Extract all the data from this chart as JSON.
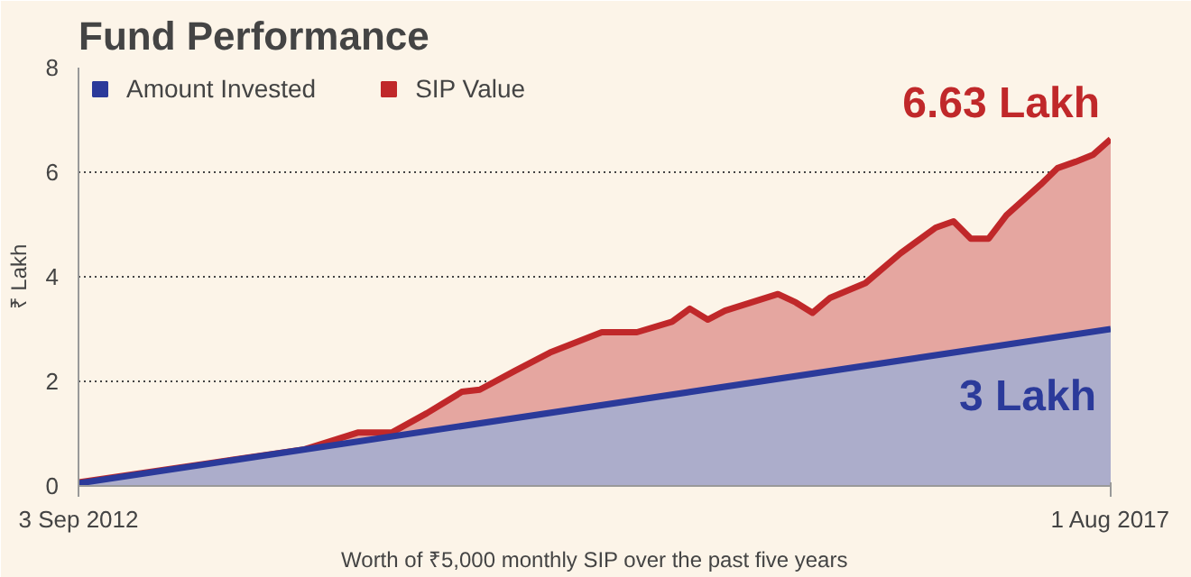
{
  "chart_data": {
    "type": "area",
    "title": "Fund Performance",
    "xlabel": "Worth of ₹5,000 monthly SIP over the past five years",
    "ylabel": "₹ Lakh",
    "series": [
      {
        "name": "SIP Value",
        "color": "#c0282a",
        "x": [
          "2012-09-03",
          "2013-10-01",
          "2014-01-01",
          "2014-03-01",
          "2014-05-01",
          "2014-07-01",
          "2014-08-01",
          "2014-10-01",
          "2014-12-01",
          "2015-03-01",
          "2015-05-01",
          "2015-07-01",
          "2015-08-01",
          "2015-09-01",
          "2015-10-01",
          "2016-01-01",
          "2016-02-01",
          "2016-03-01",
          "2016-04-01",
          "2016-06-01",
          "2016-08-01",
          "2016-10-01",
          "2016-11-01",
          "2016-12-01",
          "2017-01-01",
          "2017-02-01",
          "2017-04-01",
          "2017-05-01",
          "2017-06-01",
          "2017-07-01",
          "2017-08-01"
        ],
        "values": [
          0.07,
          0.7,
          1.02,
          1.02,
          1.39,
          1.8,
          1.84,
          2.2,
          2.55,
          2.94,
          2.94,
          3.14,
          3.39,
          3.18,
          3.35,
          3.67,
          3.51,
          3.31,
          3.6,
          3.88,
          4.45,
          4.94,
          5.06,
          4.73,
          4.73,
          5.18,
          5.76,
          6.08,
          6.2,
          6.33,
          6.63
        ]
      },
      {
        "name": "Amount Invested",
        "color": "#2b3a9a",
        "x": [
          "2012-09-03",
          "2017-08-01"
        ],
        "values": [
          0.05,
          3.0
        ]
      }
    ],
    "xlim": [
      "2012-09-03",
      "2017-08-01"
    ],
    "xticks": [
      {
        "value": "2012-09-03",
        "label": "3 Sep 2012"
      },
      {
        "value": "2017-08-01",
        "label": "1 Aug 2017"
      }
    ],
    "ylim": [
      0,
      8
    ],
    "yticks": [
      0,
      2,
      4,
      6,
      8
    ],
    "grid": "y",
    "legend": "top left",
    "annotations": [
      {
        "text": "6.63 Lakh",
        "x": "2017-08-01",
        "y": 6.63
      },
      {
        "text": "3 Lakh",
        "x": "2017-08-01",
        "y": 3
      }
    ]
  }
}
